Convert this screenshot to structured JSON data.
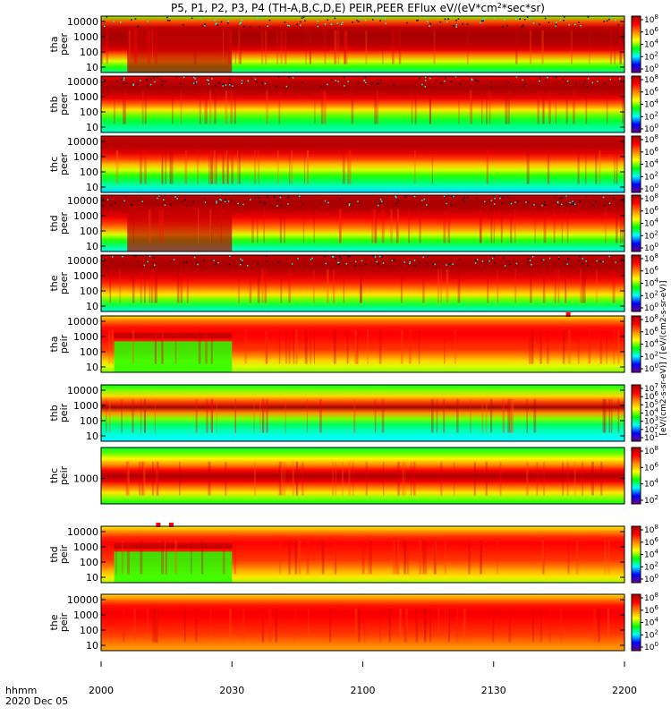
{
  "chart_data": {
    "type": "heatmap",
    "title": "P5, P1, P2, P3, P4 (TH-A,B,C,D,E) PEIR,PEER EFlux eV/(eV*cm2*sec*sr)",
    "title_parts": {
      "main": "P5, P1, P2, P3, P4 (TH-A,B,C,D,E) PEIR,PEER EFlux eV/(eV*cm",
      "sup": "2",
      "tail": "*sec*sr)"
    },
    "xlabel_row1": "hhmm",
    "xlabel_row2": "2020 Dec 05",
    "x_ticks": [
      "2000",
      "2030",
      "2100",
      "2130",
      "2200"
    ],
    "x_range_minutes": [
      0,
      120
    ],
    "colorbar_label": "[eV/(cm2-s-sr-eV)] / [eV/(cm2-s-sr-eV)]",
    "colormap": [
      "#6a0080",
      "#0000ff",
      "#00ffff",
      "#00ff00",
      "#ffff00",
      "#ff8800",
      "#ff0000",
      "#aa0000"
    ],
    "panels": [
      {
        "name": "tha-peer",
        "ylabel": [
          "tha",
          "peer"
        ],
        "y_ticks": [
          "10000",
          "1000",
          "100",
          "10"
        ],
        "cb_ticks": [
          "10^8",
          "10^6",
          "10^4",
          "10^2",
          "10^0"
        ],
        "bands": [
          0.5,
          0.78,
          0.96,
          1.0,
          1.0,
          0.98,
          0.9,
          0.72,
          0.55,
          0.45,
          0.35
        ],
        "speckle_top": true,
        "early_dropout_min": 30,
        "gaps": []
      },
      {
        "name": "thb-peer",
        "ylabel": [
          "thb",
          "peer"
        ],
        "y_ticks": [
          "10000",
          "1000",
          "100",
          "10"
        ],
        "cb_ticks": [
          "10^8",
          "10^6",
          "10^4",
          "10^2",
          "10^0"
        ],
        "bands": [
          0.9,
          0.97,
          1.0,
          0.97,
          0.88,
          0.75,
          0.6,
          0.48,
          0.4,
          0.35,
          0.32
        ],
        "speckle_top": true,
        "early_dropout_min": 0,
        "gaps": []
      },
      {
        "name": "thc-peer",
        "ylabel": [
          "thc",
          "peer"
        ],
        "y_ticks": [
          "10000",
          "1000",
          "100",
          "10"
        ],
        "cb_ticks": [
          "10^8",
          "10^6",
          "10^4",
          "10^2",
          "10^0"
        ],
        "bands": [
          0.93,
          0.98,
          0.97,
          0.9,
          0.8,
          0.66,
          0.55,
          0.45,
          0.38,
          0.32,
          0.26
        ],
        "speckle_top": false,
        "early_dropout_min": 0,
        "gaps": []
      },
      {
        "name": "thd-peer",
        "ylabel": [
          "thd",
          "peer"
        ],
        "y_ticks": [
          "10000",
          "1000",
          "100",
          "10"
        ],
        "cb_ticks": [
          "10^8",
          "10^6",
          "10^4",
          "10^2",
          "10^0"
        ],
        "bands": [
          0.96,
          1.0,
          1.0,
          0.95,
          0.88,
          0.8,
          0.7,
          0.55,
          0.45,
          0.36,
          0.3
        ],
        "speckle_top": true,
        "early_dropout_min": 30,
        "gaps": []
      },
      {
        "name": "the-peer",
        "ylabel": [
          "the",
          "peer"
        ],
        "y_ticks": [
          "10000",
          "1000",
          "100",
          "10"
        ],
        "cb_ticks": [
          "10^8",
          "10^6",
          "10^4",
          "10^2",
          "10^0"
        ],
        "bands": [
          0.95,
          0.99,
          1.0,
          0.96,
          0.9,
          0.82,
          0.72,
          0.6,
          0.48,
          0.38,
          0.3
        ],
        "speckle_top": true,
        "early_dropout_min": 0,
        "gaps": []
      },
      {
        "name": "tha-peir",
        "ylabel": [
          "tha",
          "peir"
        ],
        "y_ticks": [
          "10000",
          "1000",
          "100",
          "10"
        ],
        "cb_ticks": [
          "10^8",
          "10^6",
          "10^4",
          "10^2",
          "10^0"
        ],
        "bands": [
          0.6,
          0.75,
          0.84,
          0.86,
          0.85,
          0.82,
          0.8,
          0.72,
          0.62,
          0.55,
          0.5
        ],
        "speckle_top": false,
        "early_dropout_min": 30,
        "gaps": [
          107
        ]
      },
      {
        "name": "thb-peir",
        "ylabel": [
          "thb",
          "peir"
        ],
        "y_ticks": [
          "10000",
          "1000",
          "100",
          "10"
        ],
        "cb_ticks": [
          "10^7",
          "10^6",
          "10^5",
          "10^4",
          "10^3",
          "10^2",
          "10^1"
        ],
        "bands": [
          0.42,
          0.5,
          0.62,
          0.78,
          1.0,
          0.7,
          0.5,
          0.38,
          0.33,
          0.3,
          0.28
        ],
        "speckle_top": false,
        "early_dropout_min": 0,
        "gaps": []
      },
      {
        "name": "thc-peir",
        "ylabel": [
          "thc",
          "peir"
        ],
        "y_ticks": [
          "1000"
        ],
        "cb_ticks": [
          "10^8",
          "10^6",
          "10^4",
          "10^2"
        ],
        "bands": [
          0.4,
          0.48,
          0.58,
          0.7,
          0.85,
          1.0,
          0.88,
          0.74,
          0.6,
          0.5,
          0.42
        ],
        "speckle_top": false,
        "early_dropout_min": 0,
        "gaps": []
      },
      {
        "name": "thd-peir",
        "ylabel": [
          "thd",
          "peir"
        ],
        "y_ticks": [
          "10000",
          "1000",
          "100",
          "10"
        ],
        "cb_ticks": [
          "10^8",
          "10^6",
          "10^4",
          "10^2",
          "10^0"
        ],
        "bands": [
          0.58,
          0.72,
          0.82,
          0.86,
          0.84,
          0.82,
          0.8,
          0.74,
          0.66,
          0.6,
          0.52
        ],
        "speckle_top": false,
        "early_dropout_min": 30,
        "gaps": [
          13,
          16
        ]
      },
      {
        "name": "the-peir",
        "ylabel": [
          "the",
          "peir"
        ],
        "y_ticks": [
          "10000",
          "1000",
          "100",
          "10"
        ],
        "cb_ticks": [
          "10^8",
          "10^6",
          "10^4",
          "10^2",
          "10^0"
        ],
        "bands": [
          0.6,
          0.74,
          0.84,
          0.87,
          0.86,
          0.84,
          0.82,
          0.8,
          0.76,
          0.72,
          0.68
        ],
        "speckle_top": false,
        "early_dropout_min": 0,
        "gaps": []
      }
    ]
  }
}
